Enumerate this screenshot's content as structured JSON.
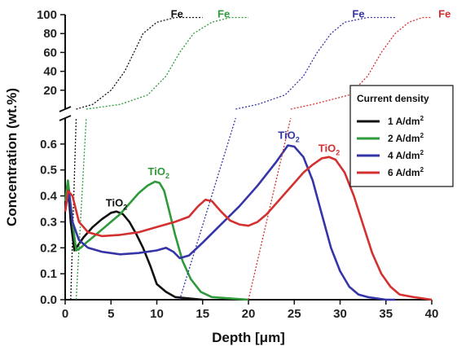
{
  "chart_data": {
    "type": "line",
    "xlabel": "Depth [μm]",
    "ylabel": "Concentration (wt.%)",
    "xlim": [
      0,
      40
    ],
    "ylim_lower": [
      0,
      0.7
    ],
    "ylim_upper": [
      0,
      100
    ],
    "x_ticks": [
      0,
      5,
      10,
      15,
      20,
      25,
      30,
      35,
      40
    ],
    "x_tick_labels": [
      "0",
      "5",
      "10",
      "15",
      "20",
      "25",
      "30",
      "35",
      "40"
    ],
    "y_ticks_lower": [
      0.0,
      0.1,
      0.2,
      0.3,
      0.4,
      0.5,
      0.6
    ],
    "y_tick_labels_lower": [
      "0.0",
      "0.1",
      "0.2",
      "0.3",
      "0.4",
      "0.5",
      "0.6"
    ],
    "y_ticks_upper": [
      20,
      40,
      60,
      80,
      100
    ],
    "y_tick_labels_upper": [
      "20",
      "40",
      "60",
      "80",
      "100"
    ],
    "legend": {
      "title": "Current density",
      "placement": "right",
      "entries": [
        {
          "label": "1 A/dm",
          "sup": "2",
          "color": "#111111"
        },
        {
          "label": "2 A/dm",
          "sup": "2",
          "color": "#2e9a3c"
        },
        {
          "label": "4 A/dm",
          "sup": "2",
          "color": "#3535a8"
        },
        {
          "label": "6 A/dm",
          "sup": "2",
          "color": "#d43030"
        }
      ]
    },
    "series": [
      {
        "name": "1 A/dm2",
        "color": "#111111",
        "tio2": {
          "x": [
            0,
            0.3,
            0.6,
            1.0,
            1.4,
            2.0,
            3.0,
            4.0,
            5.0,
            5.6,
            6.3,
            7.0,
            7.8,
            8.5,
            9.3,
            10.0,
            11.0,
            12.0,
            13.5,
            15.0
          ],
          "y": [
            0.4,
            0.45,
            0.3,
            0.19,
            0.21,
            0.24,
            0.28,
            0.31,
            0.335,
            0.34,
            0.33,
            0.3,
            0.25,
            0.2,
            0.13,
            0.06,
            0.03,
            0.01,
            0.005,
            0.0
          ]
        },
        "fe_transition": {
          "x": [
            0.6,
            1.2
          ],
          "y": [
            0.0,
            0.7
          ]
        },
        "fe": {
          "x": [
            1.2,
            3,
            5,
            6.5,
            7.5,
            8.5,
            10,
            12,
            15
          ],
          "y": [
            0,
            5,
            20,
            40,
            60,
            80,
            92,
            97,
            97
          ]
        }
      },
      {
        "name": "2 A/dm2",
        "color": "#2e9a3c",
        "tio2": {
          "x": [
            0,
            0.3,
            0.8,
            1.2,
            1.7,
            2.3,
            3.0,
            4.0,
            5.0,
            6.0,
            7.0,
            8.0,
            9.0,
            9.8,
            10.3,
            10.8,
            11.3,
            12.0,
            12.8,
            13.7,
            14.8,
            16.0,
            18.0,
            20.0
          ],
          "y": [
            0.38,
            0.46,
            0.3,
            0.19,
            0.2,
            0.22,
            0.24,
            0.27,
            0.3,
            0.33,
            0.37,
            0.41,
            0.44,
            0.455,
            0.45,
            0.42,
            0.35,
            0.25,
            0.15,
            0.08,
            0.03,
            0.01,
            0.005,
            0.0
          ]
        },
        "fe_transition": {
          "x": [
            1.2,
            2.3
          ],
          "y": [
            0.0,
            0.7
          ]
        },
        "fe": {
          "x": [
            2.3,
            6,
            9,
            11,
            12.5,
            14,
            16,
            18,
            20
          ],
          "y": [
            0,
            5,
            15,
            35,
            60,
            80,
            92,
            97,
            97
          ]
        }
      },
      {
        "name": "4 A/dm2",
        "color": "#3535a8",
        "tio2": {
          "x": [
            0,
            0.4,
            0.8,
            1.5,
            2.5,
            4,
            6,
            8,
            10,
            11,
            11.8,
            12.5,
            13.5,
            15,
            17,
            19,
            21,
            23,
            24.3,
            25,
            26,
            27,
            28,
            29,
            30,
            31,
            32,
            33,
            34,
            35,
            36
          ],
          "y": [
            0.34,
            0.42,
            0.3,
            0.23,
            0.2,
            0.185,
            0.175,
            0.18,
            0.19,
            0.2,
            0.185,
            0.16,
            0.17,
            0.22,
            0.29,
            0.36,
            0.44,
            0.53,
            0.595,
            0.59,
            0.55,
            0.46,
            0.33,
            0.2,
            0.11,
            0.05,
            0.02,
            0.01,
            0.005,
            0.0,
            0.0
          ]
        },
        "fe_transition": {
          "x": [
            12.5,
            18.6
          ],
          "y": [
            0.0,
            0.7
          ]
        },
        "fe": {
          "x": [
            18.6,
            21,
            24,
            26,
            27.5,
            29,
            30.5,
            33,
            36
          ],
          "y": [
            0,
            5,
            15,
            35,
            60,
            80,
            92,
            97,
            97
          ]
        }
      },
      {
        "name": "6 A/dm2",
        "color": "#d43030",
        "tio2": {
          "x": [
            0,
            0.3,
            0.8,
            1.5,
            2.5,
            4,
            6,
            8,
            10,
            12,
            13.5,
            14.5,
            15.3,
            16,
            17,
            18,
            19,
            20,
            21,
            22,
            23,
            24,
            25,
            26,
            27,
            28,
            28.8,
            29.5,
            30.5,
            31.5,
            32.5,
            33.5,
            34.5,
            35.5,
            36.5,
            38,
            40
          ],
          "y": [
            0.34,
            0.42,
            0.4,
            0.3,
            0.26,
            0.245,
            0.25,
            0.26,
            0.28,
            0.3,
            0.32,
            0.36,
            0.385,
            0.38,
            0.34,
            0.305,
            0.29,
            0.285,
            0.3,
            0.33,
            0.37,
            0.41,
            0.45,
            0.49,
            0.52,
            0.545,
            0.55,
            0.54,
            0.49,
            0.4,
            0.29,
            0.18,
            0.1,
            0.05,
            0.02,
            0.01,
            0.0
          ]
        },
        "fe_transition": {
          "x": [
            20.0,
            24.6
          ],
          "y": [
            0.0,
            0.7
          ]
        },
        "fe": {
          "x": [
            24.6,
            27,
            31,
            33,
            34.5,
            36,
            37.5,
            39,
            40
          ],
          "y": [
            0,
            5,
            15,
            35,
            60,
            80,
            92,
            97,
            97
          ]
        }
      }
    ],
    "annotations": [
      {
        "text": "TiO",
        "sub": "2",
        "x": 5.6,
        "y": 0.36,
        "color": "#111111"
      },
      {
        "text": "TiO",
        "sub": "2",
        "x": 10.2,
        "y": 0.48,
        "color": "#2e9a3c"
      },
      {
        "text": "TiO",
        "sub": "2",
        "x": 24.4,
        "y": 0.62,
        "color": "#3535a8"
      },
      {
        "text": "TiO",
        "sub": "2",
        "x": 28.8,
        "y": 0.57,
        "color": "#d43030"
      },
      {
        "text": "Fe",
        "x": 12.2,
        "y": 97,
        "panel": "upper",
        "color": "#111111"
      },
      {
        "text": "Fe",
        "x": 17.3,
        "y": 97,
        "panel": "upper",
        "color": "#2e9a3c"
      },
      {
        "text": "Fe",
        "x": 32.0,
        "y": 97,
        "panel": "upper",
        "color": "#3535a8"
      },
      {
        "text": "Fe",
        "x": 41.4,
        "y": 97,
        "panel": "upper",
        "color": "#d43030"
      }
    ]
  }
}
